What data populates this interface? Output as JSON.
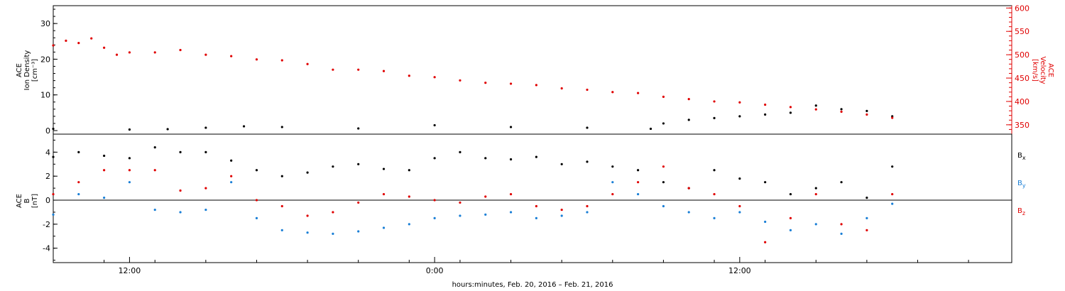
{
  "chart_data": [
    {
      "type": "scatter",
      "panel": "top",
      "ylabel_left": [
        "ACE",
        "Ion Density",
        "[cm⁻³]"
      ],
      "ylabel_right": [
        "ACE",
        "Velocity",
        "[km/s]"
      ],
      "yticks_left": [
        "0",
        "10",
        "20",
        "30"
      ],
      "yticks_right": [
        "350",
        "400",
        "450",
        "500",
        "550",
        "600"
      ],
      "ylim_left": [
        -1,
        35
      ],
      "ylim_right": [
        330,
        605
      ],
      "colors": {
        "density": "#000000",
        "velocity": "#e00000"
      },
      "series": [
        {
          "axis": "left",
          "color_key": "density",
          "points": [
            {
              "x": -3.0,
              "y": 0.5
            },
            {
              "x": 0,
              "y": 0.3
            },
            {
              "x": 1.5,
              "y": 0.4
            },
            {
              "x": 3.0,
              "y": 0.8
            },
            {
              "x": 4.5,
              "y": 1.2
            },
            {
              "x": 6.0,
              "y": 1.0
            },
            {
              "x": 9.0,
              "y": 0.6
            },
            {
              "x": 12.0,
              "y": 1.5
            },
            {
              "x": 15.0,
              "y": 1.0
            },
            {
              "x": 18.0,
              "y": 0.8
            },
            {
              "x": 20.5,
              "y": 0.5
            },
            {
              "x": 21.0,
              "y": 2.0
            },
            {
              "x": 22.0,
              "y": 3.0
            },
            {
              "x": 23.0,
              "y": 3.5
            },
            {
              "x": 24.0,
              "y": 4.0
            },
            {
              "x": 25.0,
              "y": 4.5
            },
            {
              "x": 26.0,
              "y": 5.0
            },
            {
              "x": 27.0,
              "y": 7.0
            },
            {
              "x": 28.0,
              "y": 6.0
            },
            {
              "x": 29.0,
              "y": 5.5
            },
            {
              "x": 30.0,
              "y": 4.0
            }
          ]
        },
        {
          "axis": "right",
          "color_key": "velocity",
          "points": [
            {
              "x": -3.0,
              "y": 520
            },
            {
              "x": -2.5,
              "y": 530
            },
            {
              "x": -2.0,
              "y": 525
            },
            {
              "x": -1.5,
              "y": 535
            },
            {
              "x": -1.0,
              "y": 515
            },
            {
              "x": -0.5,
              "y": 500
            },
            {
              "x": 0,
              "y": 505
            },
            {
              "x": 1.0,
              "y": 505
            },
            {
              "x": 2.0,
              "y": 510
            },
            {
              "x": 3.0,
              "y": 500
            },
            {
              "x": 4.0,
              "y": 497
            },
            {
              "x": 5.0,
              "y": 490
            },
            {
              "x": 6.0,
              "y": 488
            },
            {
              "x": 7.0,
              "y": 480
            },
            {
              "x": 8.0,
              "y": 468
            },
            {
              "x": 9.0,
              "y": 468
            },
            {
              "x": 10.0,
              "y": 465
            },
            {
              "x": 11.0,
              "y": 455
            },
            {
              "x": 12.0,
              "y": 452
            },
            {
              "x": 13.0,
              "y": 445
            },
            {
              "x": 14.0,
              "y": 440
            },
            {
              "x": 15.0,
              "y": 438
            },
            {
              "x": 16.0,
              "y": 435
            },
            {
              "x": 17.0,
              "y": 428
            },
            {
              "x": 18.0,
              "y": 425
            },
            {
              "x": 19.0,
              "y": 420
            },
            {
              "x": 20.0,
              "y": 418
            },
            {
              "x": 21.0,
              "y": 410
            },
            {
              "x": 22.0,
              "y": 405
            },
            {
              "x": 23.0,
              "y": 400
            },
            {
              "x": 24.0,
              "y": 398
            },
            {
              "x": 25.0,
              "y": 393
            },
            {
              "x": 26.0,
              "y": 388
            },
            {
              "x": 27.0,
              "y": 383
            },
            {
              "x": 28.0,
              "y": 378
            },
            {
              "x": 29.0,
              "y": 372
            },
            {
              "x": 30.0,
              "y": 365
            }
          ]
        }
      ]
    },
    {
      "type": "scatter",
      "panel": "bottom",
      "ylabel_left": [
        "ACE",
        "B",
        "[nT]"
      ],
      "yticks_left": [
        "-4",
        "-2",
        "0",
        "2",
        "4"
      ],
      "ylim_left": [
        -5.2,
        5.5
      ],
      "xticks": [
        "12:00",
        "0:00",
        "12:00"
      ],
      "xlim": [
        -3.0,
        34.7
      ],
      "xlabel": "hours:minutes, Feb. 20, 2016 – Feb. 21, 2016",
      "legend": [
        {
          "label": "Bx",
          "main": "B",
          "sub": "x",
          "color": "#000000"
        },
        {
          "label": "By",
          "main": "B",
          "sub": "y",
          "color": "#1a7fd6"
        },
        {
          "label": "Bz",
          "main": "B",
          "sub": "z",
          "color": "#e00000"
        }
      ],
      "series": [
        {
          "name": "Bx",
          "color": "#000000",
          "points": [
            {
              "x": -3.0,
              "y": 3.6
            },
            {
              "x": -2.0,
              "y": 4.0
            },
            {
              "x": -1.0,
              "y": 3.7
            },
            {
              "x": 0,
              "y": 3.5
            },
            {
              "x": 1.0,
              "y": 4.4
            },
            {
              "x": 2.0,
              "y": 4.0
            },
            {
              "x": 3.0,
              "y": 4.0
            },
            {
              "x": 4.0,
              "y": 3.3
            },
            {
              "x": 5.0,
              "y": 2.5
            },
            {
              "x": 6.0,
              "y": 2.0
            },
            {
              "x": 7.0,
              "y": 2.3
            },
            {
              "x": 8.0,
              "y": 2.8
            },
            {
              "x": 9.0,
              "y": 3.0
            },
            {
              "x": 10.0,
              "y": 2.6
            },
            {
              "x": 11.0,
              "y": 2.5
            },
            {
              "x": 12.0,
              "y": 3.5
            },
            {
              "x": 13.0,
              "y": 4.0
            },
            {
              "x": 14.0,
              "y": 3.5
            },
            {
              "x": 15.0,
              "y": 3.4
            },
            {
              "x": 16.0,
              "y": 3.6
            },
            {
              "x": 17.0,
              "y": 3.0
            },
            {
              "x": 18.0,
              "y": 3.2
            },
            {
              "x": 19.0,
              "y": 2.8
            },
            {
              "x": 20.0,
              "y": 2.5
            },
            {
              "x": 21.0,
              "y": 1.5
            },
            {
              "x": 22.0,
              "y": 1.0
            },
            {
              "x": 23.0,
              "y": 2.5
            },
            {
              "x": 24.0,
              "y": 1.8
            },
            {
              "x": 25.0,
              "y": 1.5
            },
            {
              "x": 26.0,
              "y": 0.5
            },
            {
              "x": 27.0,
              "y": 1.0
            },
            {
              "x": 28.0,
              "y": 1.5
            },
            {
              "x": 29.0,
              "y": 0.2
            },
            {
              "x": 30.0,
              "y": 2.8
            }
          ]
        },
        {
          "name": "By",
          "color": "#1a7fd6",
          "points": [
            {
              "x": -3.0,
              "y": -1.2
            },
            {
              "x": -2.0,
              "y": 0.5
            },
            {
              "x": -1.0,
              "y": 0.2
            },
            {
              "x": 0,
              "y": 1.5
            },
            {
              "x": 1.0,
              "y": -0.8
            },
            {
              "x": 2.0,
              "y": -1.0
            },
            {
              "x": 3.0,
              "y": -0.8
            },
            {
              "x": 4.0,
              "y": 1.5
            },
            {
              "x": 5.0,
              "y": -1.5
            },
            {
              "x": 6.0,
              "y": -2.5
            },
            {
              "x": 7.0,
              "y": -2.7
            },
            {
              "x": 8.0,
              "y": -2.8
            },
            {
              "x": 9.0,
              "y": -2.6
            },
            {
              "x": 10.0,
              "y": -2.3
            },
            {
              "x": 11.0,
              "y": -2.0
            },
            {
              "x": 12.0,
              "y": -1.5
            },
            {
              "x": 13.0,
              "y": -1.3
            },
            {
              "x": 14.0,
              "y": -1.2
            },
            {
              "x": 15.0,
              "y": -1.0
            },
            {
              "x": 16.0,
              "y": -1.5
            },
            {
              "x": 17.0,
              "y": -1.3
            },
            {
              "x": 18.0,
              "y": -1.0
            },
            {
              "x": 19.0,
              "y": 1.5
            },
            {
              "x": 20.0,
              "y": 0.5
            },
            {
              "x": 21.0,
              "y": -0.5
            },
            {
              "x": 22.0,
              "y": -1.0
            },
            {
              "x": 23.0,
              "y": -1.5
            },
            {
              "x": 24.0,
              "y": -1.0
            },
            {
              "x": 25.0,
              "y": -1.8
            },
            {
              "x": 26.0,
              "y": -2.5
            },
            {
              "x": 27.0,
              "y": -2.0
            },
            {
              "x": 28.0,
              "y": -2.8
            },
            {
              "x": 29.0,
              "y": -1.5
            },
            {
              "x": 30.0,
              "y": -0.3
            }
          ]
        },
        {
          "name": "Bz",
          "color": "#e00000",
          "points": [
            {
              "x": -3.0,
              "y": 0.5
            },
            {
              "x": -2.0,
              "y": 1.5
            },
            {
              "x": -1.0,
              "y": 2.5
            },
            {
              "x": 0,
              "y": 2.5
            },
            {
              "x": 1.0,
              "y": 2.5
            },
            {
              "x": 2.0,
              "y": 0.8
            },
            {
              "x": 3.0,
              "y": 1.0
            },
            {
              "x": 4.0,
              "y": 2.0
            },
            {
              "x": 5.0,
              "y": 0
            },
            {
              "x": 6.0,
              "y": -0.5
            },
            {
              "x": 7.0,
              "y": -1.3
            },
            {
              "x": 8.0,
              "y": -1.0
            },
            {
              "x": 9.0,
              "y": -0.2
            },
            {
              "x": 10.0,
              "y": 0.5
            },
            {
              "x": 11.0,
              "y": 0.3
            },
            {
              "x": 12.0,
              "y": 0
            },
            {
              "x": 13.0,
              "y": -0.2
            },
            {
              "x": 14.0,
              "y": 0.3
            },
            {
              "x": 15.0,
              "y": 0.5
            },
            {
              "x": 16.0,
              "y": -0.5
            },
            {
              "x": 17.0,
              "y": -0.8
            },
            {
              "x": 18.0,
              "y": -0.5
            },
            {
              "x": 19.0,
              "y": 0.5
            },
            {
              "x": 20.0,
              "y": 1.5
            },
            {
              "x": 21.0,
              "y": 2.8
            },
            {
              "x": 22.0,
              "y": 1.0
            },
            {
              "x": 23.0,
              "y": 0.5
            },
            {
              "x": 24.0,
              "y": -0.5
            },
            {
              "x": 25.0,
              "y": -3.5
            },
            {
              "x": 26.0,
              "y": -1.5
            },
            {
              "x": 27.0,
              "y": 0.5
            },
            {
              "x": 28.0,
              "y": -2.0
            },
            {
              "x": 29.0,
              "y": -2.5
            },
            {
              "x": 30.0,
              "y": 0.5
            }
          ]
        }
      ]
    }
  ]
}
